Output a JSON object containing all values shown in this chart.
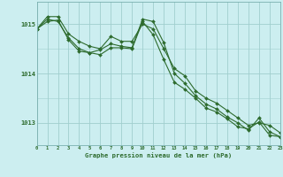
{
  "background_color": "#cceef0",
  "plot_bg_color": "#cceef0",
  "line_color": "#2d6b2d",
  "grid_color": "#a0cece",
  "xlabel": "Graphe pression niveau de la mer (hPa)",
  "xlim": [
    0,
    23
  ],
  "ylim": [
    1012.55,
    1015.45
  ],
  "yticks": [
    1013,
    1014,
    1015
  ],
  "xticks": [
    0,
    1,
    2,
    3,
    4,
    5,
    6,
    7,
    8,
    9,
    10,
    11,
    12,
    13,
    14,
    15,
    16,
    17,
    18,
    19,
    20,
    21,
    22,
    23
  ],
  "series1": {
    "x": [
      0,
      1,
      2,
      3,
      4,
      5,
      6,
      7,
      8,
      9,
      10,
      11,
      12,
      13,
      14,
      15,
      16,
      17,
      18,
      19,
      20,
      21,
      22,
      23
    ],
    "y": [
      1014.9,
      1015.15,
      1015.15,
      1014.8,
      1014.65,
      1014.55,
      1014.5,
      1014.75,
      1014.65,
      1014.65,
      1015.0,
      1014.9,
      1014.5,
      1014.1,
      1013.95,
      1013.65,
      1013.5,
      1013.4,
      1013.25,
      1013.1,
      1012.95,
      1013.0,
      1012.95,
      1012.8
    ]
  },
  "series2": {
    "x": [
      0,
      1,
      2,
      3,
      4,
      5,
      6,
      7,
      8,
      9,
      10,
      11,
      12,
      13,
      14,
      15,
      16,
      17,
      18,
      19,
      20,
      21,
      22,
      23
    ],
    "y": [
      1014.9,
      1015.1,
      1015.05,
      1014.72,
      1014.5,
      1014.42,
      1014.48,
      1014.6,
      1014.55,
      1014.52,
      1015.1,
      1015.05,
      1014.62,
      1014.0,
      1013.8,
      1013.55,
      1013.38,
      1013.28,
      1013.12,
      1013.0,
      1012.85,
      1013.1,
      1012.82,
      1012.72
    ]
  },
  "series3": {
    "x": [
      0,
      1,
      2,
      3,
      4,
      5,
      6,
      7,
      8,
      9,
      10,
      11,
      12,
      13,
      14,
      15,
      16,
      17,
      18,
      19,
      20,
      21,
      22,
      23
    ],
    "y": [
      1014.9,
      1015.05,
      1015.08,
      1014.68,
      1014.45,
      1014.42,
      1014.38,
      1014.52,
      1014.52,
      1014.5,
      1015.05,
      1014.78,
      1014.28,
      1013.82,
      1013.68,
      1013.5,
      1013.3,
      1013.22,
      1013.08,
      1012.92,
      1012.88,
      1013.02,
      1012.75,
      1012.72
    ]
  }
}
